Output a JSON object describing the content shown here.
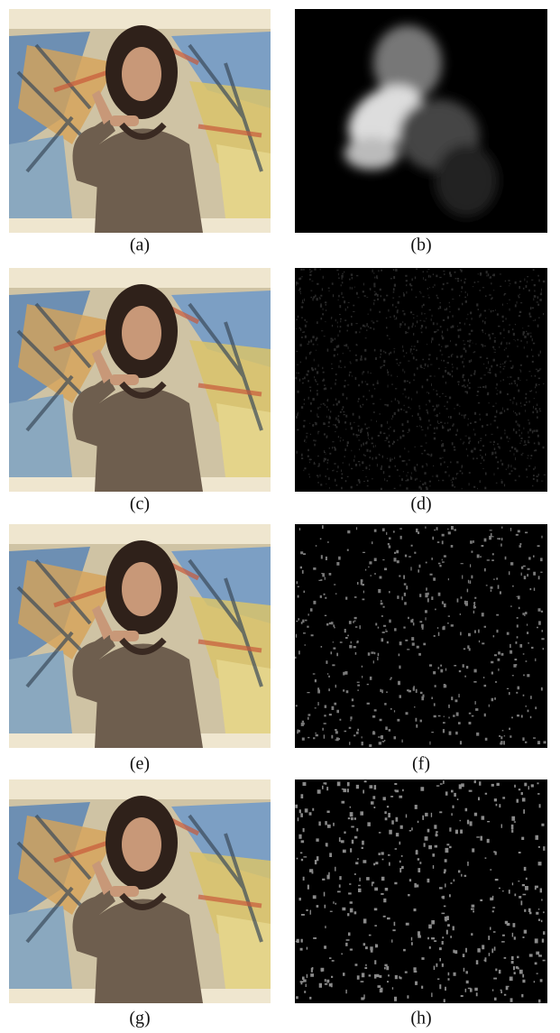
{
  "figure": {
    "panels": [
      {
        "label": "(a)"
      },
      {
        "label": "(b)"
      },
      {
        "label": "(c)"
      },
      {
        "label": "(d)"
      },
      {
        "label": "(e)"
      },
      {
        "label": "(f)"
      },
      {
        "label": "(g)"
      },
      {
        "label": "(h)"
      }
    ]
  }
}
